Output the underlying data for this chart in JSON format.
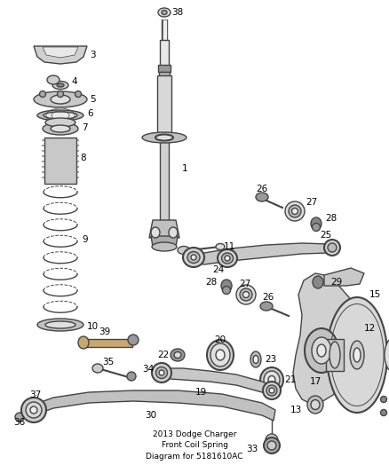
{
  "title": "2013 Dodge Charger\nFront Coil Spring\nDiagram for 5181610AC",
  "background_color": "#ffffff",
  "text_color": "#000000",
  "line_color": "#444444",
  "fig_width": 4.38,
  "fig_height": 5.33,
  "dpi": 100,
  "label_fs": 7.5,
  "lw_main": 1.0
}
